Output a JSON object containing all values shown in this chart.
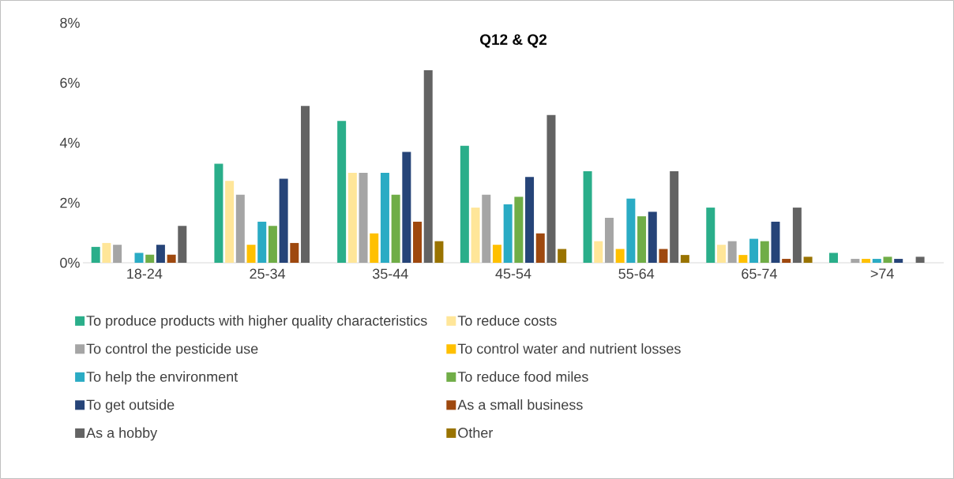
{
  "chart_data": {
    "type": "bar",
    "title": "Q12 & Q2",
    "categories": [
      "18-24",
      "25-34",
      "35-44",
      "45-54",
      "55-64",
      "65-74",
      ">74"
    ],
    "ylim": [
      0,
      8
    ],
    "yticks": [
      {
        "value": 0,
        "label": "0%"
      },
      {
        "value": 2,
        "label": "2%"
      },
      {
        "value": 4,
        "label": "4%"
      },
      {
        "value": 6,
        "label": "6%"
      },
      {
        "value": 8,
        "label": "8%"
      }
    ],
    "legend": "bottom",
    "series": [
      {
        "name": "To produce products with higher quality characteristics",
        "color": "#2aae8a",
        "values": [
          0.53,
          3.3,
          4.73,
          3.9,
          3.05,
          1.84,
          0.33
        ]
      },
      {
        "name": "To reduce costs",
        "color": "#ffe699",
        "values": [
          0.66,
          2.73,
          3.0,
          1.84,
          0.72,
          0.6,
          0
        ]
      },
      {
        "name": "To control the pesticide use",
        "color": "#a5a5a5",
        "values": [
          0.6,
          2.27,
          3.0,
          2.27,
          1.5,
          0.72,
          0.13
        ]
      },
      {
        "name": "To control water and nutrient losses",
        "color": "#ffc000",
        "values": [
          0,
          0.6,
          0.98,
          0.6,
          0.46,
          0.26,
          0.13
        ]
      },
      {
        "name": "To help the environment",
        "color": "#2aabc4",
        "values": [
          0.33,
          1.37,
          3.0,
          1.95,
          2.14,
          0.8,
          0.13
        ]
      },
      {
        "name": "To reduce food miles",
        "color": "#70ad47",
        "values": [
          0.27,
          1.23,
          2.27,
          2.2,
          1.55,
          0.72,
          0.2
        ]
      },
      {
        "name": "To get outside",
        "color": "#264478",
        "values": [
          0.6,
          2.8,
          3.7,
          2.86,
          1.7,
          1.37,
          0.13
        ]
      },
      {
        "name": "As a small business",
        "color": "#9e480e",
        "values": [
          0.27,
          0.66,
          1.37,
          0.98,
          0.46,
          0.13,
          0
        ]
      },
      {
        "name": "As a hobby",
        "color": "#636363",
        "values": [
          1.23,
          5.23,
          6.42,
          4.93,
          3.05,
          1.84,
          0.2
        ]
      },
      {
        "name": "Other",
        "color": "#997300",
        "values": [
          0,
          0,
          0.72,
          0.46,
          0.26,
          0.2,
          0
        ]
      }
    ]
  }
}
